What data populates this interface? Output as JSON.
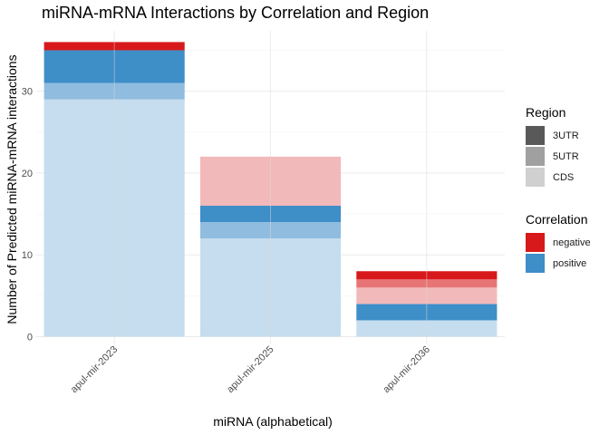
{
  "chart_data": {
    "type": "bar",
    "stacked": true,
    "title": "miRNA-mRNA Interactions by Correlation and Region",
    "xlabel": "miRNA (alphabetical)",
    "ylabel": "Number of Predicted miRNA-mRNA interactions",
    "ylim": [
      0,
      37
    ],
    "yticks": [
      0,
      10,
      20,
      30
    ],
    "categories": [
      "apul-mir-2023",
      "apul-mir-2025",
      "apul-mir-2036"
    ],
    "segments": [
      [
        {
          "correlation": "positive",
          "region": "CDS",
          "value": 29
        },
        {
          "correlation": "positive",
          "region": "5UTR",
          "value": 2
        },
        {
          "correlation": "positive",
          "region": "3UTR",
          "value": 4
        },
        {
          "correlation": "negative",
          "region": "3UTR",
          "value": 1
        }
      ],
      [
        {
          "correlation": "positive",
          "region": "CDS",
          "value": 12
        },
        {
          "correlation": "positive",
          "region": "5UTR",
          "value": 2
        },
        {
          "correlation": "positive",
          "region": "3UTR",
          "value": 2
        },
        {
          "correlation": "negative",
          "region": "CDS",
          "value": 6
        }
      ],
      [
        {
          "correlation": "positive",
          "region": "CDS",
          "value": 2
        },
        {
          "correlation": "positive",
          "region": "3UTR",
          "value": 2
        },
        {
          "correlation": "negative",
          "region": "CDS",
          "value": 2
        },
        {
          "correlation": "negative",
          "region": "5UTR",
          "value": 1
        },
        {
          "correlation": "negative",
          "region": "3UTR",
          "value": 1
        }
      ]
    ],
    "legends": {
      "region": {
        "title": "Region",
        "entries": [
          {
            "label": "3UTR",
            "color": "#595959"
          },
          {
            "label": "5UTR",
            "color": "#a0a0a0"
          },
          {
            "label": "CDS",
            "color": "#d0d0d0"
          }
        ]
      },
      "correlation": {
        "title": "Correlation",
        "entries": [
          {
            "label": "negative",
            "color": "#d7191c"
          },
          {
            "label": "positive",
            "color": "#3e8ec8"
          }
        ]
      }
    },
    "colors": {
      "positive": {
        "3UTR": "#3e8ec8",
        "5UTR": "#90bcdf",
        "CDS": "#c5ddee"
      },
      "negative": {
        "3UTR": "#d7191c",
        "5UTR": "#e87575",
        "CDS": "#f2b9ba"
      }
    },
    "grid": true
  }
}
